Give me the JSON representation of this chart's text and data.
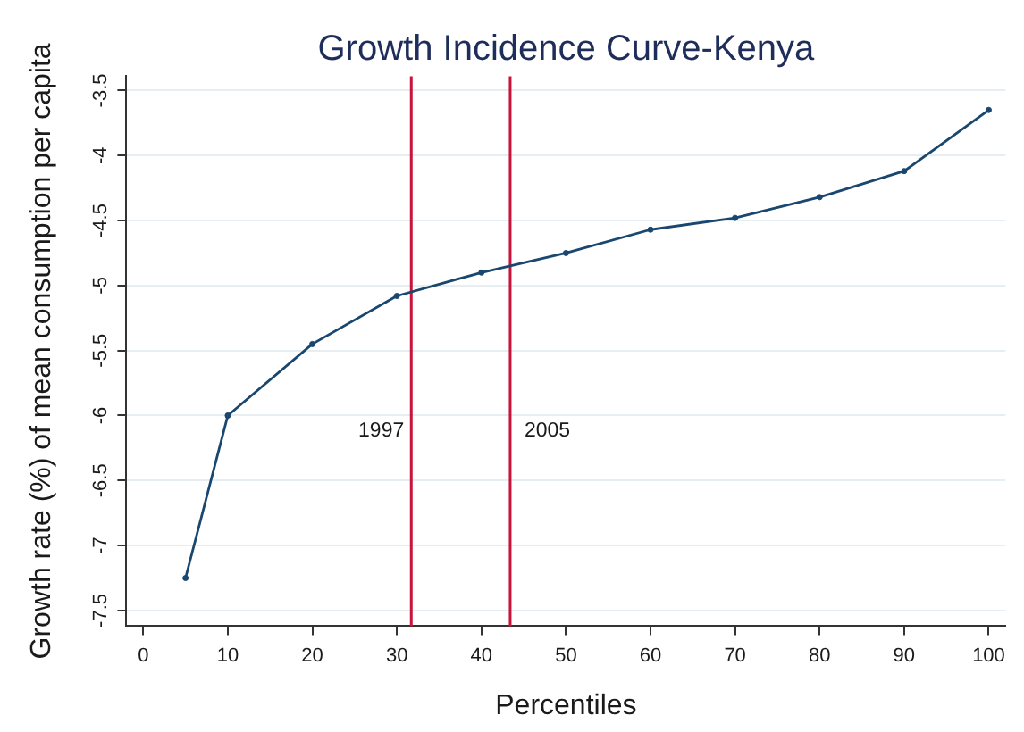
{
  "chart_data": {
    "type": "line",
    "title": "Growth Incidence Curve-Kenya",
    "xlabel": "Percentiles",
    "ylabel": "Growth rate (%) of mean consumption per capita",
    "x": [
      5,
      10,
      20,
      30,
      40,
      50,
      60,
      70,
      80,
      90,
      100
    ],
    "values": [
      -7.25,
      -6.0,
      -5.45,
      -5.08,
      -4.9,
      -4.75,
      -4.57,
      -4.48,
      -4.32,
      -4.12,
      -3.65
    ],
    "color": "#1a476f",
    "xlim": [
      -2,
      102
    ],
    "xticks": [
      0,
      10,
      20,
      30,
      40,
      50,
      60,
      70,
      80,
      90,
      100
    ],
    "ylim": [
      -7.62,
      -3.39
    ],
    "yticks": [
      -7.5,
      -7,
      -6.5,
      -6,
      -5.5,
      -5,
      -4.5,
      -4,
      -3.5
    ],
    "ref_lines": [
      {
        "axis": "x",
        "value": 31.7,
        "color": "#c8143c"
      },
      {
        "axis": "x",
        "value": 43.4,
        "color": "#c8143c"
      }
    ],
    "annotations": [
      {
        "text": "1997",
        "x": 31.7,
        "y": -6.12
      },
      {
        "text": "2005",
        "x": 43.4,
        "y": -6.12
      }
    ],
    "grid": "y",
    "marker": "circle",
    "line_style": "solid"
  }
}
